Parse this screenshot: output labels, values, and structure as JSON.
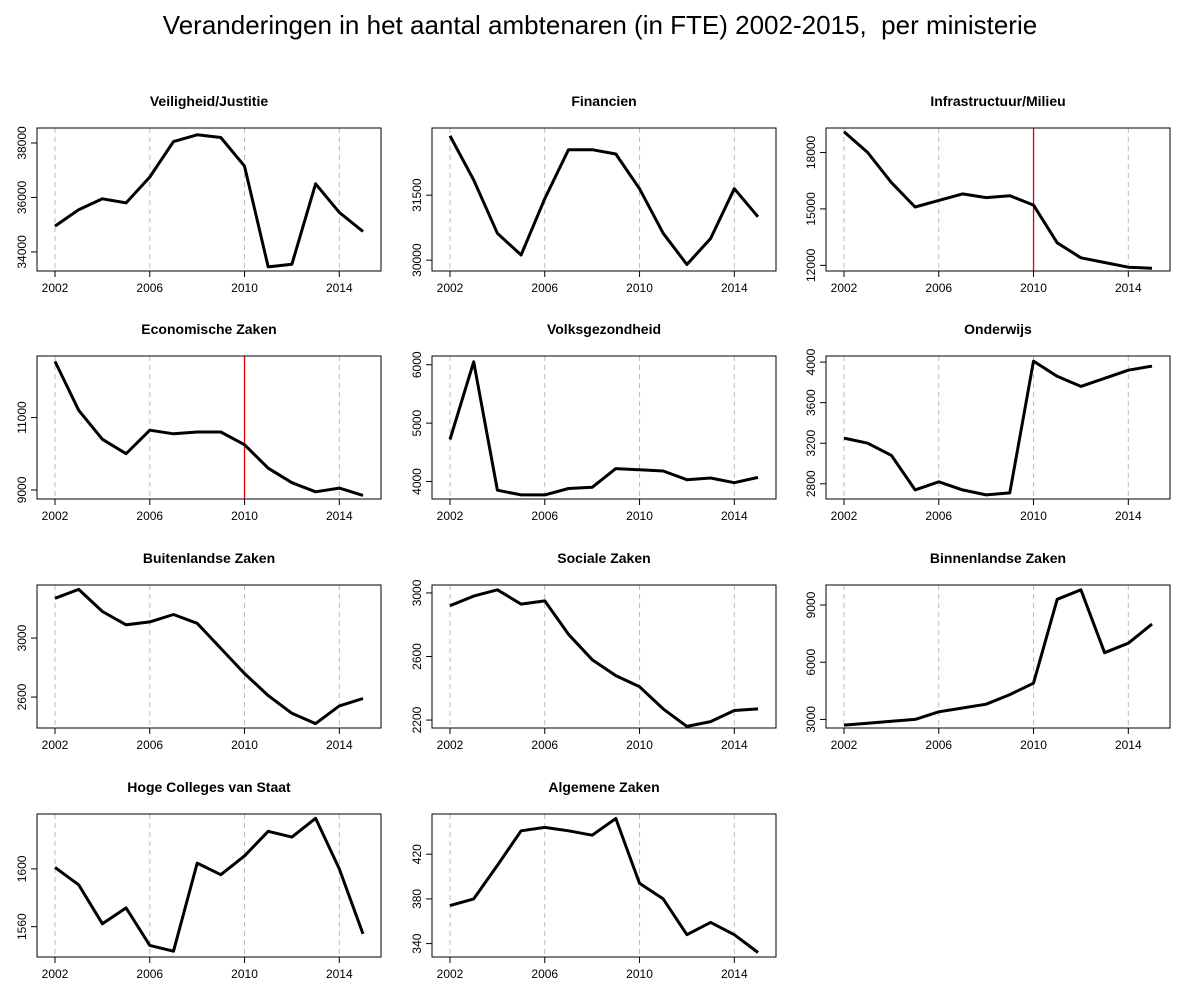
{
  "title": "Veranderingen in het aantal ambtenaren (in FTE) 2002-2015,  per ministerie",
  "line_color": "#000000",
  "vline_color": "#dd0000",
  "grid_color": "#bbbbbb",
  "chart_data": [
    {
      "type": "line",
      "title": "Veiligheid/Justitie",
      "x": [
        2002,
        2003,
        2004,
        2005,
        2006,
        2007,
        2008,
        2009,
        2010,
        2011,
        2012,
        2013,
        2014,
        2015
      ],
      "values": [
        34950,
        35550,
        35950,
        35800,
        36750,
        38050,
        38300,
        38200,
        37150,
        33450,
        33550,
        36500,
        35450,
        34750
      ],
      "ylim": [
        33300,
        38550
      ],
      "yticks": [
        34000,
        36000,
        38000
      ],
      "xticks": [
        2002,
        2006,
        2010,
        2014
      ],
      "dashed_x": [
        2002,
        2006,
        2010,
        2014
      ],
      "red_line_x": null
    },
    {
      "type": "line",
      "title": "Financien",
      "x": [
        2002,
        2003,
        2004,
        2005,
        2006,
        2007,
        2008,
        2009,
        2010,
        2011,
        2012,
        2013,
        2014,
        2015
      ],
      "values": [
        32870,
        31850,
        30620,
        30120,
        31420,
        32550,
        32550,
        32450,
        31650,
        30620,
        29900,
        30500,
        31650,
        31000
      ],
      "ylim": [
        29750,
        33050
      ],
      "yticks": [
        30000,
        31500
      ],
      "xticks": [
        2002,
        2006,
        2010,
        2014
      ],
      "dashed_x": [
        2002,
        2006,
        2010,
        2014
      ],
      "red_line_x": null
    },
    {
      "type": "line",
      "title": "Infrastructuur/Milieu",
      "x": [
        2002,
        2003,
        2004,
        2005,
        2006,
        2007,
        2008,
        2009,
        2010,
        2011,
        2012,
        2013,
        2014,
        2015
      ],
      "values": [
        19100,
        18000,
        16400,
        15100,
        15450,
        15800,
        15600,
        15700,
        15200,
        13200,
        12400,
        12150,
        11900,
        11850
      ],
      "ylim": [
        11700,
        19300
      ],
      "yticks": [
        12000,
        15000,
        18000
      ],
      "xticks": [
        2002,
        2006,
        2010,
        2014
      ],
      "dashed_x": [
        2002,
        2006,
        2014
      ],
      "red_line_x": 2010
    },
    {
      "type": "line",
      "title": "Economische Zaken",
      "x": [
        2002,
        2003,
        2004,
        2005,
        2006,
        2007,
        2008,
        2009,
        2010,
        2011,
        2012,
        2013,
        2014,
        2015
      ],
      "values": [
        12550,
        11200,
        10400,
        10000,
        10650,
        10550,
        10600,
        10600,
        10250,
        9600,
        9200,
        8950,
        9050,
        8850
      ],
      "ylim": [
        8750,
        12700
      ],
      "yticks": [
        9000,
        11000
      ],
      "xticks": [
        2002,
        2006,
        2010,
        2014
      ],
      "dashed_x": [
        2002,
        2006,
        2014
      ],
      "red_line_x": 2010
    },
    {
      "type": "line",
      "title": "Volksgezondheid",
      "x": [
        2002,
        2003,
        2004,
        2005,
        2006,
        2007,
        2008,
        2009,
        2010,
        2011,
        2012,
        2013,
        2014,
        2015
      ],
      "values": [
        4720,
        6050,
        3850,
        3770,
        3770,
        3880,
        3900,
        4220,
        4200,
        4180,
        4030,
        4060,
        3980,
        4070
      ],
      "ylim": [
        3700,
        6150
      ],
      "yticks": [
        4000,
        5000,
        6000
      ],
      "xticks": [
        2002,
        2006,
        2010,
        2014
      ],
      "dashed_x": [
        2002,
        2006,
        2010,
        2014
      ],
      "red_line_x": null
    },
    {
      "type": "line",
      "title": "Onderwijs",
      "x": [
        2002,
        2003,
        2004,
        2005,
        2006,
        2007,
        2008,
        2009,
        2010,
        2011,
        2012,
        2013,
        2014,
        2015
      ],
      "values": [
        3250,
        3200,
        3080,
        2740,
        2820,
        2740,
        2690,
        2710,
        4010,
        3860,
        3760,
        3840,
        3920,
        3960
      ],
      "ylim": [
        2650,
        4060
      ],
      "yticks": [
        2800,
        3200,
        3600,
        4000
      ],
      "xticks": [
        2002,
        2006,
        2010,
        2014
      ],
      "dashed_x": [
        2002,
        2006,
        2010,
        2014
      ],
      "red_line_x": null
    },
    {
      "type": "line",
      "title": "Buitenlandse Zaken",
      "x": [
        2002,
        2003,
        2004,
        2005,
        2006,
        2007,
        2008,
        2009,
        2010,
        2011,
        2012,
        2013,
        2014,
        2015
      ],
      "values": [
        3270,
        3330,
        3180,
        3090,
        3110,
        3160,
        3100,
        2930,
        2760,
        2610,
        2490,
        2420,
        2540,
        2590
      ],
      "ylim": [
        2390,
        3360
      ],
      "yticks": [
        2600,
        3000
      ],
      "xticks": [
        2002,
        2006,
        2010,
        2014
      ],
      "dashed_x": [
        2002,
        2006,
        2010,
        2014
      ],
      "red_line_x": null
    },
    {
      "type": "line",
      "title": "Sociale Zaken",
      "x": [
        2002,
        2003,
        2004,
        2005,
        2006,
        2007,
        2008,
        2009,
        2010,
        2011,
        2012,
        2013,
        2014,
        2015
      ],
      "values": [
        2920,
        2980,
        3020,
        2930,
        2950,
        2740,
        2580,
        2480,
        2410,
        2270,
        2160,
        2190,
        2260,
        2270
      ],
      "ylim": [
        2150,
        3050
      ],
      "yticks": [
        2200,
        2600,
        3000
      ],
      "xticks": [
        2002,
        2006,
        2010,
        2014
      ],
      "dashed_x": [
        2002,
        2006,
        2010,
        2014
      ],
      "red_line_x": null
    },
    {
      "type": "line",
      "title": "Binnenlandse Zaken",
      "x": [
        2002,
        2003,
        2004,
        2005,
        2006,
        2007,
        2008,
        2009,
        2010,
        2011,
        2012,
        2013,
        2014,
        2015
      ],
      "values": [
        2700,
        2800,
        2900,
        3000,
        3400,
        3600,
        3800,
        4300,
        4900,
        9300,
        9800,
        6500,
        7000,
        8000
      ],
      "ylim": [
        2550,
        10050
      ],
      "yticks": [
        3000,
        6000,
        9000
      ],
      "xticks": [
        2002,
        2006,
        2010,
        2014
      ],
      "dashed_x": [
        2002,
        2006,
        2010,
        2014
      ],
      "red_line_x": null
    },
    {
      "type": "line",
      "title": "Hoge Colleges van Staat",
      "x": [
        2002,
        2003,
        2004,
        2005,
        2006,
        2007,
        2008,
        2009,
        2010,
        2011,
        2012,
        2013,
        2014,
        2015
      ],
      "values": [
        1601,
        1589,
        1562,
        1573,
        1547,
        1543,
        1604,
        1596,
        1609,
        1626,
        1622,
        1635,
        1600,
        1555
      ],
      "ylim": [
        1539,
        1638
      ],
      "yticks": [
        1560,
        1600
      ],
      "xticks": [
        2002,
        2006,
        2010,
        2014
      ],
      "dashed_x": [
        2002,
        2006,
        2010,
        2014
      ],
      "red_line_x": null
    },
    {
      "type": "line",
      "title": "Algemene Zaken",
      "x": [
        2002,
        2003,
        2004,
        2005,
        2006,
        2007,
        2008,
        2009,
        2010,
        2011,
        2012,
        2013,
        2014,
        2015
      ],
      "values": [
        374,
        380,
        410,
        441,
        444,
        441,
        437,
        452,
        394,
        380,
        348,
        359,
        348,
        332
      ],
      "ylim": [
        328,
        456
      ],
      "yticks": [
        340,
        380,
        420
      ],
      "xticks": [
        2002,
        2006,
        2010,
        2014
      ],
      "dashed_x": [
        2002,
        2006,
        2010,
        2014
      ],
      "red_line_x": null
    }
  ]
}
